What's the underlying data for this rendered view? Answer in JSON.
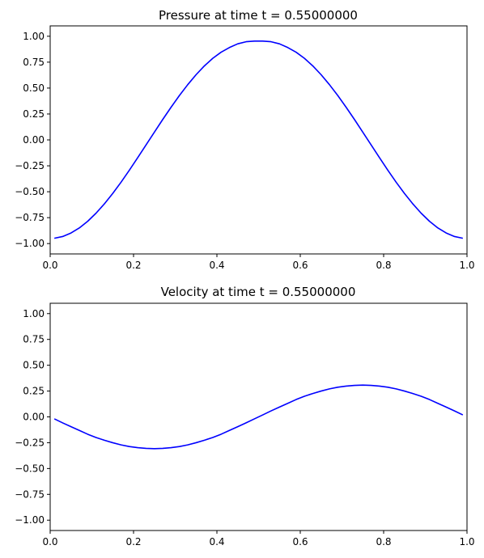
{
  "chart_data": [
    {
      "type": "line",
      "title": "Pressure at time t =     0.55000000",
      "xlabel": "",
      "ylabel": "",
      "xlim": [
        0,
        1
      ],
      "ylim": [
        -1.1,
        1.1
      ],
      "grid": false,
      "legend": "none",
      "x_ticks": [
        0.0,
        0.2,
        0.4,
        0.6,
        0.8,
        1.0
      ],
      "x_tick_labels": [
        "0.0",
        "0.2",
        "0.4",
        "0.6",
        "0.8",
        "1.0"
      ],
      "y_ticks": [
        1.0,
        0.75,
        0.5,
        0.25,
        0.0,
        -0.25,
        -0.5,
        -0.75,
        -1.0
      ],
      "y_tick_labels": [
        "1.00",
        "0.75",
        "0.50",
        "0.25",
        "0.00",
        "−0.25",
        "−0.50",
        "−0.75",
        "−1.00"
      ],
      "series": [
        {
          "color": "#0000ff",
          "x": [
            0.01,
            0.03,
            0.05,
            0.07,
            0.09,
            0.11,
            0.13,
            0.15,
            0.17,
            0.19,
            0.21,
            0.23,
            0.25,
            0.27,
            0.29,
            0.31,
            0.33,
            0.35,
            0.37,
            0.39,
            0.41,
            0.43,
            0.45,
            0.47,
            0.49,
            0.51,
            0.53,
            0.55,
            0.57,
            0.59,
            0.61,
            0.63,
            0.65,
            0.67,
            0.69,
            0.71,
            0.73,
            0.75,
            0.77,
            0.79,
            0.81,
            0.83,
            0.85,
            0.87,
            0.89,
            0.91,
            0.93,
            0.95,
            0.97,
            0.99
          ],
          "y": [
            -0.949,
            -0.932,
            -0.898,
            -0.849,
            -0.785,
            -0.707,
            -0.617,
            -0.517,
            -0.408,
            -0.292,
            -0.171,
            -0.048,
            0.075,
            0.197,
            0.315,
            0.428,
            0.533,
            0.629,
            0.714,
            0.787,
            0.846,
            0.891,
            0.927,
            0.947,
            0.953,
            0.953,
            0.947,
            0.927,
            0.891,
            0.846,
            0.787,
            0.714,
            0.629,
            0.533,
            0.428,
            0.315,
            0.197,
            0.075,
            -0.048,
            -0.171,
            -0.292,
            -0.408,
            -0.517,
            -0.617,
            -0.707,
            -0.785,
            -0.849,
            -0.898,
            -0.932,
            -0.949
          ]
        }
      ]
    },
    {
      "type": "line",
      "title": "Velocity at time t =     0.55000000",
      "xlabel": "",
      "ylabel": "",
      "xlim": [
        0,
        1
      ],
      "ylim": [
        -1.1,
        1.1
      ],
      "grid": false,
      "legend": "none",
      "x_ticks": [
        0.0,
        0.2,
        0.4,
        0.6,
        0.8,
        1.0
      ],
      "x_tick_labels": [
        "0.0",
        "0.2",
        "0.4",
        "0.6",
        "0.8",
        "1.0"
      ],
      "y_ticks": [
        1.0,
        0.75,
        0.5,
        0.25,
        0.0,
        -0.25,
        -0.5,
        -0.75,
        -1.0
      ],
      "y_tick_labels": [
        "1.00",
        "0.75",
        "0.50",
        "0.25",
        "0.00",
        "−0.25",
        "−0.50",
        "−0.75",
        "−1.00"
      ],
      "series": [
        {
          "color": "#0000ff",
          "x": [
            0.01,
            0.03,
            0.05,
            0.07,
            0.09,
            0.11,
            0.13,
            0.15,
            0.17,
            0.19,
            0.21,
            0.23,
            0.25,
            0.27,
            0.29,
            0.31,
            0.33,
            0.35,
            0.37,
            0.39,
            0.41,
            0.43,
            0.45,
            0.47,
            0.49,
            0.51,
            0.53,
            0.55,
            0.57,
            0.59,
            0.61,
            0.63,
            0.65,
            0.67,
            0.69,
            0.71,
            0.73,
            0.75,
            0.77,
            0.79,
            0.81,
            0.83,
            0.85,
            0.87,
            0.89,
            0.91,
            0.93,
            0.95,
            0.97,
            0.99
          ],
          "y": [
            -0.019,
            -0.058,
            -0.095,
            -0.131,
            -0.168,
            -0.2,
            -0.226,
            -0.25,
            -0.271,
            -0.287,
            -0.298,
            -0.305,
            -0.308,
            -0.305,
            -0.298,
            -0.287,
            -0.271,
            -0.25,
            -0.226,
            -0.2,
            -0.168,
            -0.131,
            -0.095,
            -0.058,
            -0.019,
            0.019,
            0.058,
            0.095,
            0.131,
            0.168,
            0.2,
            0.226,
            0.25,
            0.271,
            0.287,
            0.298,
            0.305,
            0.308,
            0.305,
            0.298,
            0.287,
            0.271,
            0.25,
            0.226,
            0.2,
            0.168,
            0.131,
            0.095,
            0.058,
            0.019
          ]
        }
      ]
    }
  ]
}
